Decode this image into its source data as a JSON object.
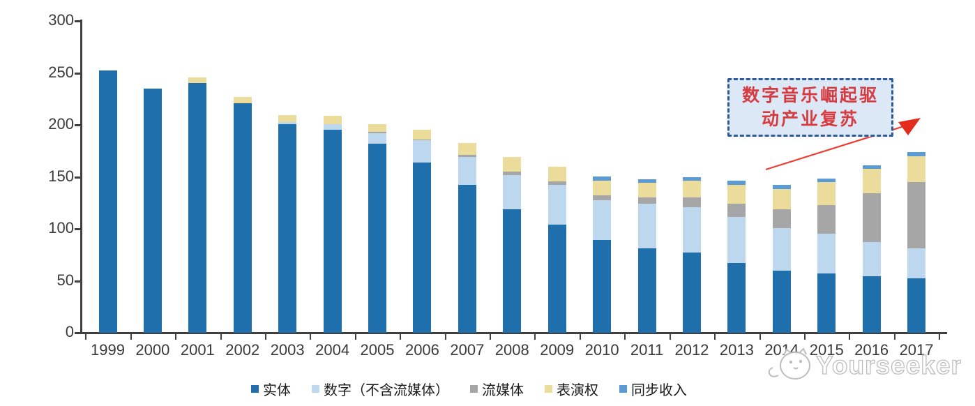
{
  "chart_data": {
    "type": "bar",
    "stacked": true,
    "title": "",
    "xlabel": "",
    "ylabel": "",
    "ylim": [
      0,
      300
    ],
    "yticks": [
      0,
      50,
      100,
      150,
      200,
      250,
      300
    ],
    "grid": false,
    "legend_position": "bottom",
    "categories": [
      "1999",
      "2000",
      "2001",
      "2002",
      "2003",
      "2004",
      "2005",
      "2006",
      "2007",
      "2008",
      "2009",
      "2010",
      "2011",
      "2012",
      "2013",
      "2014",
      "2015",
      "2016",
      "2017"
    ],
    "series": [
      {
        "name": "实体",
        "color": "#1f6fad",
        "values": [
          252.5,
          235,
          240,
          221,
          201,
          195,
          182,
          163.5,
          142,
          118.5,
          104,
          89,
          81.5,
          77,
          67,
          60,
          57,
          54.5,
          52.5
        ]
      },
      {
        "name": "数字（不含流媒体）",
        "color": "#bdd7ee",
        "values": [
          0,
          0,
          0,
          0,
          1.5,
          5.5,
          10,
          21.5,
          27,
          33.5,
          38,
          38.5,
          42.5,
          43.5,
          44.5,
          41,
          38.5,
          32.5,
          29
        ]
      },
      {
        "name": "流媒体",
        "color": "#a6a6a6",
        "values": [
          0,
          0,
          0,
          0,
          0,
          0,
          1.5,
          1,
          2,
          3,
          3.5,
          4.5,
          6.5,
          10,
          12.5,
          18,
          27.5,
          47,
          63.5
        ]
      },
      {
        "name": "表演权",
        "color": "#ecdc9c",
        "values": [
          0,
          0,
          5.5,
          6,
          7,
          8,
          7.5,
          9,
          11.5,
          14,
          14,
          14.5,
          13.5,
          16,
          18.5,
          19.5,
          22,
          23.5,
          25
        ]
      },
      {
        "name": "同步收入",
        "color": "#5b9bd5",
        "values": [
          0,
          0,
          0,
          0,
          0,
          0,
          0,
          0,
          0,
          0,
          0,
          4,
          3.5,
          3.5,
          3.5,
          3.5,
          3.5,
          3.5,
          3.5
        ]
      }
    ]
  },
  "annotation": {
    "line1": "数字音乐崛起驱",
    "line2": "动产业复苏",
    "text_color": "#d73b40",
    "box_fill": "#dce8f6",
    "box_border": "#2e5b97",
    "arrow_color": "#f03b30"
  },
  "watermark": {
    "text": "Yourseeker",
    "logo": "cat-logo-icon",
    "color": "#bdbdbd"
  }
}
